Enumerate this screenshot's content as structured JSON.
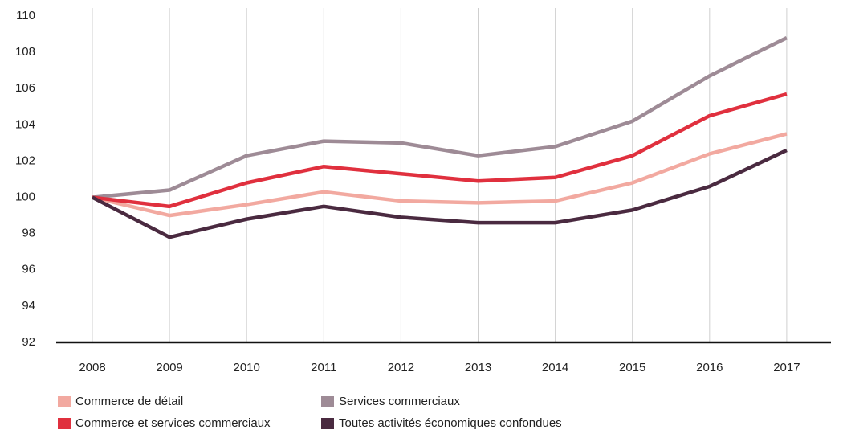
{
  "chart_data": {
    "type": "line",
    "categories": [
      "2008",
      "2009",
      "2010",
      "2011",
      "2012",
      "2013",
      "2014",
      "2015",
      "2016",
      "2017"
    ],
    "series": [
      {
        "name": "Commerce de détail",
        "color": "#f2a9a0",
        "values": [
          100,
          99.0,
          99.6,
          100.3,
          99.8,
          99.7,
          99.8,
          100.8,
          102.4,
          103.5
        ]
      },
      {
        "name": "Services commerciaux",
        "color": "#9e8b96",
        "values": [
          100,
          100.4,
          102.3,
          103.1,
          103.0,
          102.3,
          102.8,
          104.2,
          106.7,
          108.8
        ]
      },
      {
        "name": "Commerce et services commerciaux",
        "color": "#e0303e",
        "values": [
          100,
          99.5,
          100.8,
          101.7,
          101.3,
          100.9,
          101.1,
          102.3,
          104.5,
          105.7
        ]
      },
      {
        "name": "Toutes activités économiques confondues",
        "color": "#4a2a40",
        "values": [
          100,
          97.8,
          98.8,
          99.5,
          98.9,
          98.6,
          98.6,
          99.3,
          100.6,
          102.6
        ]
      }
    ],
    "ylim": [
      92,
      110
    ],
    "yticks": [
      92,
      94,
      96,
      98,
      100,
      102,
      104,
      106,
      108,
      110
    ],
    "legend": "bottom"
  }
}
